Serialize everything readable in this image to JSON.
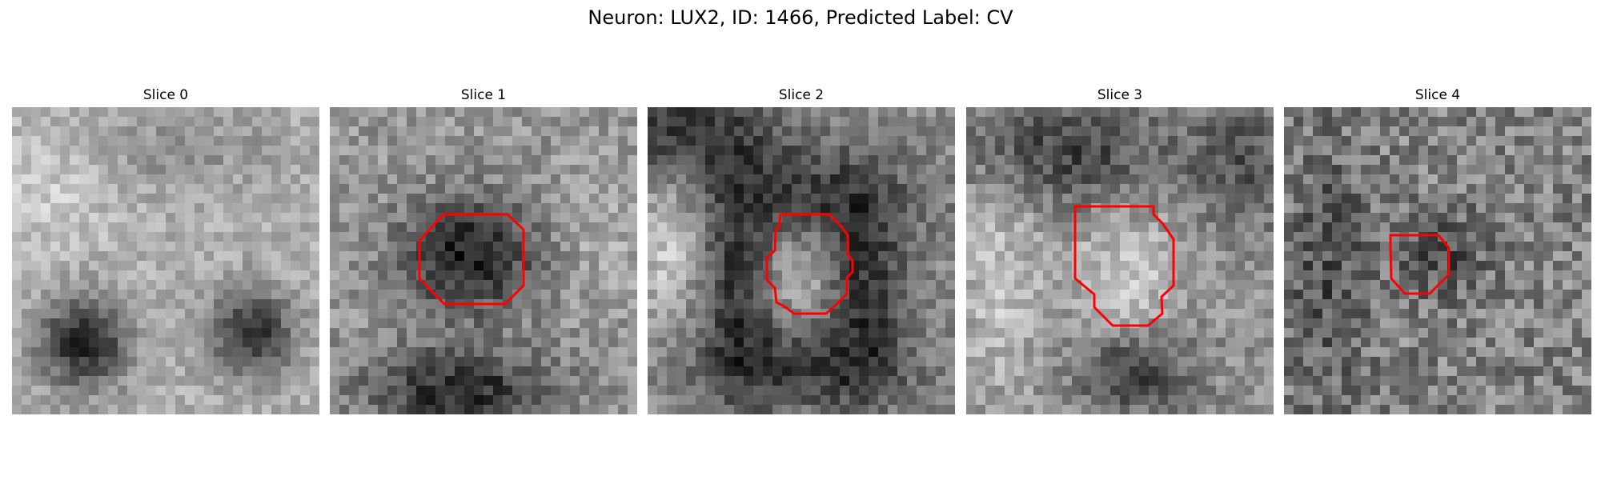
{
  "figure": {
    "title": "Neuron: LUX2, ID: 1466, Predicted Label: CV"
  },
  "outline_color": "#ff0000",
  "colormap": "gray",
  "panels": [
    {
      "title": "Slice 0",
      "has_outline": false
    },
    {
      "title": "Slice 1",
      "has_outline": true
    },
    {
      "title": "Slice 2",
      "has_outline": true
    },
    {
      "title": "Slice 3",
      "has_outline": true
    },
    {
      "title": "Slice 4",
      "has_outline": true
    }
  ]
}
